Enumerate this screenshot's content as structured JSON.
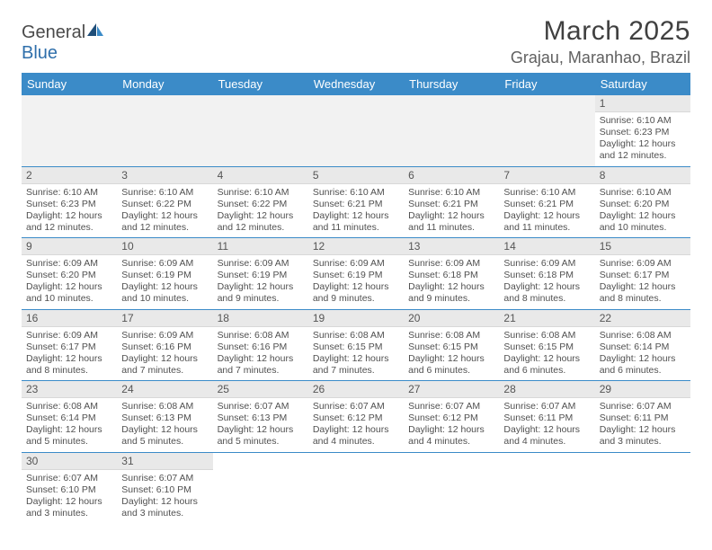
{
  "brand": {
    "part1": "General",
    "part2": "Blue"
  },
  "title": "March 2025",
  "location": "Grajau, Maranhao, Brazil",
  "colors": {
    "header_bg": "#3b8bc8",
    "header_fg": "#ffffff",
    "daynum_bg": "#e9e9e9",
    "row_border": "#3b8bc8",
    "blank_bg": "#f2f2f2",
    "text": "#505050"
  },
  "day_headers": [
    "Sunday",
    "Monday",
    "Tuesday",
    "Wednesday",
    "Thursday",
    "Friday",
    "Saturday"
  ],
  "weeks": [
    [
      null,
      null,
      null,
      null,
      null,
      null,
      {
        "n": "1",
        "sunrise": "6:10 AM",
        "sunset": "6:23 PM",
        "daylight": "12 hours and 12 minutes."
      }
    ],
    [
      {
        "n": "2",
        "sunrise": "6:10 AM",
        "sunset": "6:23 PM",
        "daylight": "12 hours and 12 minutes."
      },
      {
        "n": "3",
        "sunrise": "6:10 AM",
        "sunset": "6:22 PM",
        "daylight": "12 hours and 12 minutes."
      },
      {
        "n": "4",
        "sunrise": "6:10 AM",
        "sunset": "6:22 PM",
        "daylight": "12 hours and 12 minutes."
      },
      {
        "n": "5",
        "sunrise": "6:10 AM",
        "sunset": "6:21 PM",
        "daylight": "12 hours and 11 minutes."
      },
      {
        "n": "6",
        "sunrise": "6:10 AM",
        "sunset": "6:21 PM",
        "daylight": "12 hours and 11 minutes."
      },
      {
        "n": "7",
        "sunrise": "6:10 AM",
        "sunset": "6:21 PM",
        "daylight": "12 hours and 11 minutes."
      },
      {
        "n": "8",
        "sunrise": "6:10 AM",
        "sunset": "6:20 PM",
        "daylight": "12 hours and 10 minutes."
      }
    ],
    [
      {
        "n": "9",
        "sunrise": "6:09 AM",
        "sunset": "6:20 PM",
        "daylight": "12 hours and 10 minutes."
      },
      {
        "n": "10",
        "sunrise": "6:09 AM",
        "sunset": "6:19 PM",
        "daylight": "12 hours and 10 minutes."
      },
      {
        "n": "11",
        "sunrise": "6:09 AM",
        "sunset": "6:19 PM",
        "daylight": "12 hours and 9 minutes."
      },
      {
        "n": "12",
        "sunrise": "6:09 AM",
        "sunset": "6:19 PM",
        "daylight": "12 hours and 9 minutes."
      },
      {
        "n": "13",
        "sunrise": "6:09 AM",
        "sunset": "6:18 PM",
        "daylight": "12 hours and 9 minutes."
      },
      {
        "n": "14",
        "sunrise": "6:09 AM",
        "sunset": "6:18 PM",
        "daylight": "12 hours and 8 minutes."
      },
      {
        "n": "15",
        "sunrise": "6:09 AM",
        "sunset": "6:17 PM",
        "daylight": "12 hours and 8 minutes."
      }
    ],
    [
      {
        "n": "16",
        "sunrise": "6:09 AM",
        "sunset": "6:17 PM",
        "daylight": "12 hours and 8 minutes."
      },
      {
        "n": "17",
        "sunrise": "6:09 AM",
        "sunset": "6:16 PM",
        "daylight": "12 hours and 7 minutes."
      },
      {
        "n": "18",
        "sunrise": "6:08 AM",
        "sunset": "6:16 PM",
        "daylight": "12 hours and 7 minutes."
      },
      {
        "n": "19",
        "sunrise": "6:08 AM",
        "sunset": "6:15 PM",
        "daylight": "12 hours and 7 minutes."
      },
      {
        "n": "20",
        "sunrise": "6:08 AM",
        "sunset": "6:15 PM",
        "daylight": "12 hours and 6 minutes."
      },
      {
        "n": "21",
        "sunrise": "6:08 AM",
        "sunset": "6:15 PM",
        "daylight": "12 hours and 6 minutes."
      },
      {
        "n": "22",
        "sunrise": "6:08 AM",
        "sunset": "6:14 PM",
        "daylight": "12 hours and 6 minutes."
      }
    ],
    [
      {
        "n": "23",
        "sunrise": "6:08 AM",
        "sunset": "6:14 PM",
        "daylight": "12 hours and 5 minutes."
      },
      {
        "n": "24",
        "sunrise": "6:08 AM",
        "sunset": "6:13 PM",
        "daylight": "12 hours and 5 minutes."
      },
      {
        "n": "25",
        "sunrise": "6:07 AM",
        "sunset": "6:13 PM",
        "daylight": "12 hours and 5 minutes."
      },
      {
        "n": "26",
        "sunrise": "6:07 AM",
        "sunset": "6:12 PM",
        "daylight": "12 hours and 4 minutes."
      },
      {
        "n": "27",
        "sunrise": "6:07 AM",
        "sunset": "6:12 PM",
        "daylight": "12 hours and 4 minutes."
      },
      {
        "n": "28",
        "sunrise": "6:07 AM",
        "sunset": "6:11 PM",
        "daylight": "12 hours and 4 minutes."
      },
      {
        "n": "29",
        "sunrise": "6:07 AM",
        "sunset": "6:11 PM",
        "daylight": "12 hours and 3 minutes."
      }
    ],
    [
      {
        "n": "30",
        "sunrise": "6:07 AM",
        "sunset": "6:10 PM",
        "daylight": "12 hours and 3 minutes."
      },
      {
        "n": "31",
        "sunrise": "6:07 AM",
        "sunset": "6:10 PM",
        "daylight": "12 hours and 3 minutes."
      },
      null,
      null,
      null,
      null,
      null
    ]
  ],
  "labels": {
    "sunrise": "Sunrise:",
    "sunset": "Sunset:",
    "daylight": "Daylight:"
  }
}
